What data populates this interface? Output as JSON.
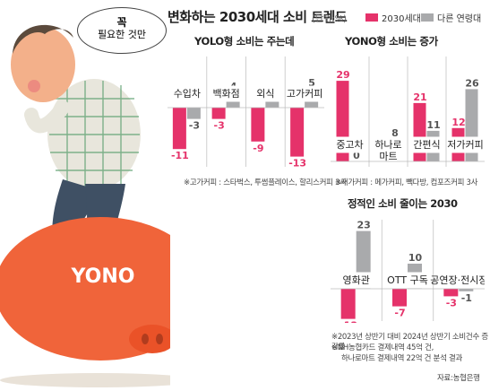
{
  "title": "변화하는 2030세대 소비 트렌드",
  "unit": "(단위:%)",
  "colors": {
    "primary": "#e5326a",
    "secondary": "#a9aaac",
    "pig": "#f0643a"
  },
  "legend": [
    {
      "label": "2030세대",
      "color": "#e5326a"
    },
    {
      "label": "다른 연령대",
      "color": "#a9aaac"
    }
  ],
  "illustration": {
    "bubble_line1": "꼭",
    "bubble_line2": "필요한 것만",
    "pig_label": "YONO"
  },
  "panels": {
    "yolo": {
      "title": "YOLO형 소비는 주는데",
      "note": "※고가커피 : 스타벅스, 투썸플레이스, 할리스커피 3사"
    },
    "yono": {
      "title": "YONO형 소비는 증가",
      "note": "※저가커피 : 메가커피, 빽다방, 컴포즈커피 3사"
    },
    "static": {
      "title": "정적인 소비 줄이는 2030"
    }
  },
  "footnotes": [
    "※2023년 상반기 대비 2024년 상반기 소비건수 증감률",
    "※NH농협카드 결제내역 45억 건,",
    "하나로마트 결제내역 22억 건 분석 결과"
  ],
  "source": "자료:농협은행",
  "chart_data": [
    {
      "type": "bar",
      "title": "YOLO형 소비는 주는데",
      "categories": [
        "수입차",
        "백화점",
        "외식",
        "고가커피"
      ],
      "series": [
        {
          "name": "2030세대",
          "values": [
            -11,
            -3,
            -9,
            -13
          ]
        },
        {
          "name": "다른 연령대",
          "values": [
            -3,
            4,
            3,
            5
          ]
        }
      ]
    },
    {
      "type": "bar",
      "title": "YONO형 소비는 증가",
      "categories": [
        "중고차",
        "하나로\n마트",
        "간편식",
        "저가커피"
      ],
      "series": [
        {
          "name": "2030세대",
          "values": [
            29,
            5,
            21,
            12
          ]
        },
        {
          "name": "다른 연령대",
          "values": [
            0,
            8,
            11,
            26
          ]
        }
      ]
    },
    {
      "type": "bar",
      "title": "정적인 소비 줄이는 2030",
      "categories": [
        "영화관",
        "OTT 구독",
        "공연장·전시장"
      ],
      "series": [
        {
          "name": "2030세대",
          "values": [
            -12,
            -7,
            -3
          ]
        },
        {
          "name": "다른 연령대",
          "values": [
            23,
            10,
            -1
          ]
        }
      ]
    }
  ]
}
